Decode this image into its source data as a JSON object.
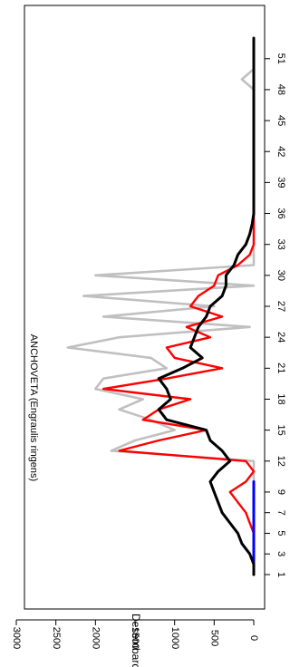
{
  "chart_data": {
    "type": "line",
    "title": "ANCHOVETA (Engraulis ringens)",
    "ylabel": "Desembarque (t)",
    "xlabel": "",
    "orientation": "rotated-90-clockwise",
    "xlim": [
      1,
      53
    ],
    "ylim": [
      0,
      3000
    ],
    "x_ticks": [
      1,
      3,
      5,
      7,
      9,
      12,
      15,
      18,
      21,
      24,
      27,
      30,
      33,
      36,
      39,
      42,
      45,
      48,
      51
    ],
    "y_ticks": [
      0,
      500,
      1000,
      1500,
      2000,
      2500,
      3000
    ],
    "grid": false,
    "legend": "none",
    "series": [
      {
        "color": "#c0c0c0",
        "x": [
          1,
          2,
          3,
          4,
          5,
          6,
          7,
          8,
          9,
          10,
          11,
          12,
          13,
          14,
          15,
          16,
          17,
          18,
          19,
          20,
          21,
          22,
          23,
          24,
          25,
          26,
          27,
          28,
          29,
          30,
          31,
          32,
          33,
          34,
          35,
          36,
          37,
          38,
          39,
          40,
          41,
          42,
          43,
          44,
          45,
          46,
          47,
          48,
          49,
          50,
          51,
          52,
          53
        ],
        "values": [
          0,
          0,
          0,
          0,
          0,
          0,
          0,
          0,
          0,
          0,
          0,
          0,
          1800,
          1500,
          1000,
          1300,
          1700,
          1400,
          2000,
          1900,
          1100,
          1300,
          2350,
          1700,
          50,
          1900,
          500,
          2150,
          0,
          2000,
          0,
          0,
          0,
          0,
          0,
          0,
          0,
          0,
          0,
          0,
          0,
          0,
          0,
          0,
          0,
          0,
          0,
          0,
          150,
          0,
          0,
          0,
          0
        ]
      },
      {
        "color": "#ff0000",
        "x": [
          1,
          2,
          3,
          4,
          5,
          6,
          7,
          8,
          9,
          10,
          11,
          12,
          13,
          14,
          15,
          16,
          17,
          18,
          19,
          20,
          21,
          22,
          23,
          24,
          25,
          26,
          27,
          28,
          29,
          30,
          31,
          32,
          33,
          34,
          35,
          36,
          37,
          38,
          39,
          40,
          41,
          42,
          43,
          44,
          45,
          46,
          47,
          48,
          49,
          50,
          51,
          52,
          53
        ],
        "values": [
          0,
          0,
          0,
          0,
          0,
          50,
          100,
          200,
          300,
          100,
          0,
          100,
          1700,
          1200,
          600,
          1400,
          1200,
          800,
          1900,
          1100,
          400,
          1000,
          1100,
          550,
          850,
          400,
          800,
          700,
          500,
          450,
          200,
          50,
          0,
          0,
          0,
          0,
          0,
          0,
          0,
          0,
          0,
          0,
          0,
          0,
          0,
          0,
          0,
          0,
          0,
          0,
          0,
          0,
          0
        ]
      },
      {
        "color": "#0000ff",
        "x": [
          1,
          2,
          3,
          4,
          5,
          6,
          7,
          8,
          9,
          10
        ],
        "values": [
          0,
          0,
          0,
          0,
          0,
          0,
          0,
          0,
          0,
          0
        ]
      },
      {
        "color": "#000000",
        "x": [
          1,
          2,
          3,
          4,
          5,
          6,
          7,
          8,
          9,
          10,
          11,
          12,
          13,
          14,
          15,
          16,
          17,
          18,
          19,
          20,
          21,
          22,
          23,
          24,
          25,
          26,
          27,
          28,
          29,
          30,
          31,
          32,
          33,
          34,
          35,
          36,
          37,
          38,
          39,
          40,
          41,
          42,
          43,
          44,
          45,
          46,
          47,
          48,
          49,
          50,
          51,
          52,
          53
        ],
        "values": [
          0,
          0,
          50,
          150,
          200,
          300,
          400,
          450,
          500,
          550,
          450,
          300,
          400,
          550,
          600,
          1100,
          1200,
          1050,
          1100,
          1200,
          900,
          650,
          800,
          750,
          700,
          600,
          550,
          400,
          350,
          350,
          250,
          200,
          100,
          50,
          20,
          0,
          0,
          0,
          0,
          0,
          0,
          0,
          0,
          0,
          0,
          0,
          0,
          0,
          0,
          0,
          0,
          0,
          0
        ]
      }
    ]
  }
}
